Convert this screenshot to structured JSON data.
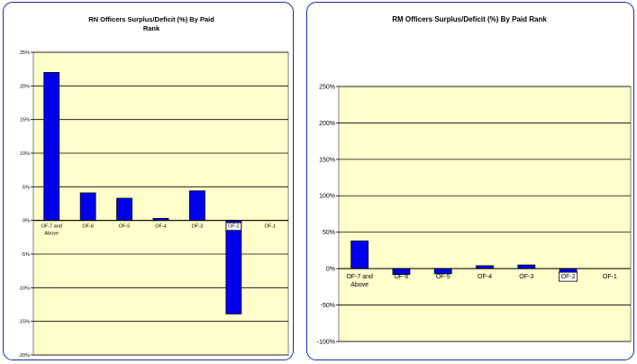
{
  "chart_data": [
    {
      "type": "bar",
      "title_lines": [
        "RN Officers Surplus/Deficit (%) By Paid",
        "Rank"
      ],
      "categories": [
        "OF-7 and Above",
        "OF-6",
        "OF-5",
        "OF-4",
        "OF-3",
        "OF-2",
        "OF-1"
      ],
      "category_lines": [
        [
          "OF-7 and",
          "Above"
        ],
        [
          "OF-6"
        ],
        [
          "OF-5"
        ],
        [
          "OF-4"
        ],
        [
          "OF-3"
        ],
        [
          "OF-2"
        ],
        [
          "OF-1"
        ]
      ],
      "boxed_category": "OF-2",
      "values": [
        22.0,
        4.1,
        3.3,
        0.3,
        4.4,
        -13.9,
        0
      ],
      "ylim": [
        -20,
        25
      ],
      "yticks": [
        25,
        20,
        15,
        10,
        5,
        0,
        -5,
        -10,
        -15,
        -20
      ],
      "ytick_labels": [
        "25%",
        "20%",
        "15%",
        "10%",
        "5%",
        "0%",
        "-5%",
        "-10%",
        "-15%",
        "-20%"
      ],
      "xlabel": "",
      "ylabel": "",
      "grid": true,
      "legend": "none"
    },
    {
      "type": "bar",
      "title_lines": [
        "RM Officers Surplus/Deficit (%) By Paid Rank"
      ],
      "categories": [
        "OF-7 and Above",
        "OF-6",
        "OF-5",
        "OF-4",
        "OF-3",
        "OF-2",
        "OF-1"
      ],
      "category_lines": [
        [
          "OF-7 and",
          "Above"
        ],
        [
          "OF-6"
        ],
        [
          "OF-5"
        ],
        [
          "OF-4"
        ],
        [
          "OF-3"
        ],
        [
          "OF-2"
        ],
        [
          "OF-1"
        ]
      ],
      "boxed_category": "OF-2",
      "values": [
        38,
        -8,
        -7,
        4,
        5,
        -7,
        0
      ],
      "ylim": [
        -100,
        250
      ],
      "yticks": [
        250,
        200,
        150,
        100,
        50,
        0,
        -50,
        -100
      ],
      "ytick_labels": [
        "250%",
        "200%",
        "150%",
        "100%",
        "50%",
        "0%",
        "-50%",
        "-100%"
      ],
      "xlabel": "",
      "ylabel": "",
      "grid": true,
      "legend": "none"
    }
  ],
  "colors": {
    "plot_background": "#ffffcc",
    "bar_fill": "#0000ee",
    "gridline": "#000000",
    "panel_border": "#1a2aa8"
  }
}
